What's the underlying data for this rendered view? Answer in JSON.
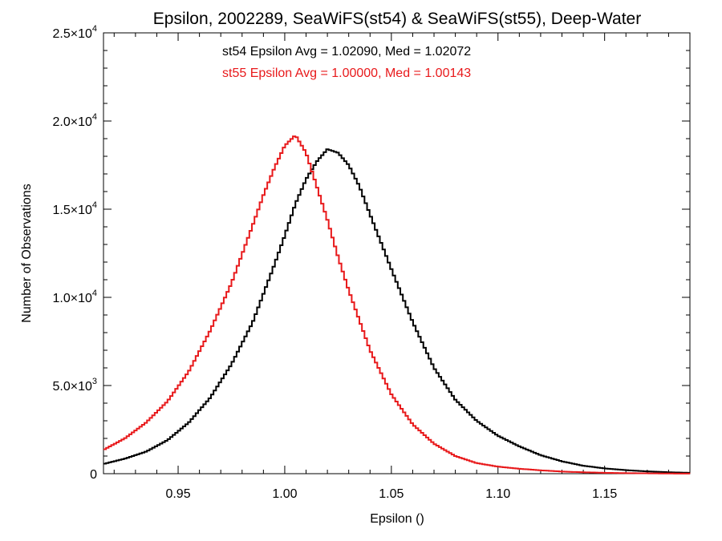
{
  "chart_data": {
    "type": "line",
    "title": "Epsilon, 2002289, SeaWiFS(st54) & SeaWiFS(st55), Deep-Water",
    "xlabel": "Epsilon ()",
    "ylabel": "Number of Observations",
    "xlim": [
      0.915,
      1.19
    ],
    "ylim": [
      0,
      25000
    ],
    "x_ticks": [
      0.95,
      1.0,
      1.05,
      1.1,
      1.15
    ],
    "x_tick_labels": [
      "0.95",
      "1.00",
      "1.05",
      "1.10",
      "1.15"
    ],
    "y_ticks": [
      0,
      5000,
      10000,
      15000,
      20000,
      25000
    ],
    "y_tick_labels": [
      {
        "mantissa": "0",
        "exp": ""
      },
      {
        "mantissa": "5.0×10",
        "exp": "3"
      },
      {
        "mantissa": "1.0×10",
        "exp": "4"
      },
      {
        "mantissa": "1.5×10",
        "exp": "4"
      },
      {
        "mantissa": "2.0×10",
        "exp": "4"
      },
      {
        "mantissa": "2.5×10",
        "exp": "4"
      }
    ],
    "grid": false,
    "style": "step-histogram",
    "series": [
      {
        "annotation": "st54 Epsilon Avg = 1.02090, Med = 1.02072",
        "color": "#000000",
        "x": [
          0.915,
          0.925,
          0.935,
          0.945,
          0.955,
          0.965,
          0.975,
          0.985,
          0.995,
          1.0,
          1.005,
          1.01,
          1.015,
          1.02,
          1.025,
          1.03,
          1.035,
          1.04,
          1.05,
          1.06,
          1.07,
          1.08,
          1.09,
          1.1,
          1.11,
          1.12,
          1.13,
          1.14,
          1.15,
          1.16,
          1.17,
          1.18,
          1.19
        ],
        "y": [
          550,
          850,
          1250,
          1900,
          2900,
          4300,
          6200,
          8600,
          11800,
          13500,
          15300,
          16700,
          17700,
          18400,
          18200,
          17500,
          16300,
          14700,
          11600,
          8600,
          6000,
          4200,
          3000,
          2150,
          1550,
          1050,
          700,
          450,
          300,
          200,
          130,
          80,
          50
        ]
      },
      {
        "annotation": "st55 Epsilon Avg = 1.00000, Med = 1.00143",
        "color": "#e8191b",
        "x": [
          0.915,
          0.925,
          0.935,
          0.945,
          0.955,
          0.965,
          0.975,
          0.985,
          0.99,
          0.995,
          1.0,
          1.005,
          1.01,
          1.015,
          1.02,
          1.025,
          1.03,
          1.04,
          1.05,
          1.06,
          1.07,
          1.08,
          1.09,
          1.1,
          1.11,
          1.12,
          1.13,
          1.14,
          1.15,
          1.16,
          1.17,
          1.18,
          1.19
        ],
        "y": [
          1350,
          2000,
          2900,
          4100,
          5800,
          8100,
          10800,
          14100,
          15800,
          17300,
          18600,
          19200,
          18200,
          16300,
          14400,
          12300,
          10400,
          7000,
          4500,
          2800,
          1700,
          1000,
          600,
          400,
          280,
          190,
          120,
          80,
          50,
          30,
          20,
          10,
          5
        ]
      }
    ]
  },
  "colors": {
    "axis": "#000000",
    "series_1": "#000000",
    "series_2": "#e8191b"
  }
}
